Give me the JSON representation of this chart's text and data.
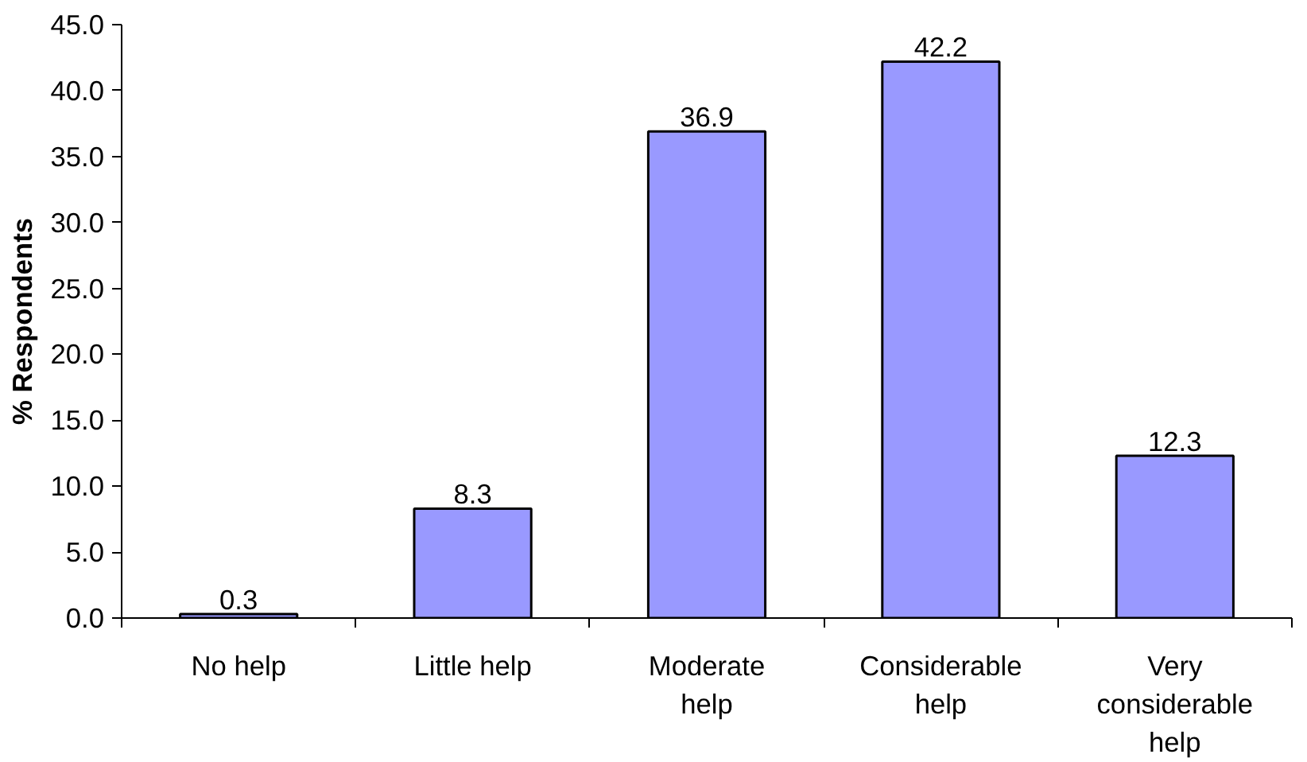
{
  "chart_data": {
    "type": "bar",
    "ylabel": "% Respondents",
    "categories": [
      "No help",
      "Little help",
      "Moderate help",
      "Considerable help",
      "Very considerable help"
    ],
    "values": [
      0.3,
      8.3,
      36.9,
      42.2,
      12.3
    ],
    "color": "#9999ff",
    "ylim": [
      0,
      45
    ],
    "yticks": [
      {
        "value": 0,
        "label": "0.0"
      },
      {
        "value": 5,
        "label": "5.0"
      },
      {
        "value": 10,
        "label": "10.0"
      },
      {
        "value": 15,
        "label": "15.0"
      },
      {
        "value": 20,
        "label": "20.0"
      },
      {
        "value": 25,
        "label": "25.0"
      },
      {
        "value": 30,
        "label": "30.0"
      },
      {
        "value": 35,
        "label": "35.0"
      },
      {
        "value": 40,
        "label": "40.0"
      },
      {
        "value": 45,
        "label": "45.0"
      }
    ],
    "data_labels": true,
    "grid": false
  }
}
